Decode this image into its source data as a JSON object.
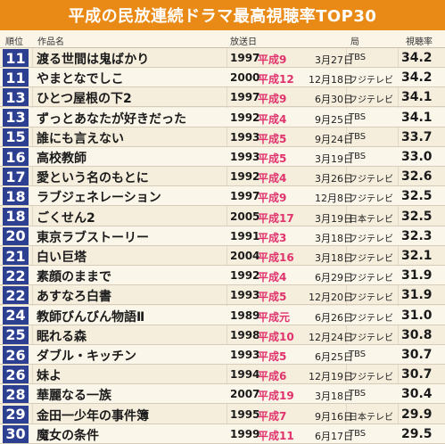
{
  "title": "平成の民放連続ドラマ最高視聴率TOP30",
  "headers": {
    "rank": "順位",
    "title": "作品名",
    "airdate": "放送日",
    "network": "局",
    "rating": "視聴率"
  },
  "rows": [
    {
      "rank": "11",
      "title": "渡る世間は鬼ばかり",
      "year": "1997",
      "heisei": "平成9",
      "date": "3月27日",
      "network": "TBS",
      "rating": "34.2"
    },
    {
      "rank": "11",
      "title": "やまとなでしこ",
      "year": "2000",
      "heisei": "平成12",
      "date": "12月18日",
      "network": "フジテレビ",
      "rating": "34.2"
    },
    {
      "rank": "13",
      "title": "ひとつ屋根の下2",
      "year": "1997",
      "heisei": "平成9",
      "date": "6月30日",
      "network": "フジテレビ",
      "rating": "34.1"
    },
    {
      "rank": "13",
      "title": "ずっとあなたが好きだった",
      "year": "1992",
      "heisei": "平成4",
      "date": "9月25日",
      "network": "TBS",
      "rating": "34.1"
    },
    {
      "rank": "15",
      "title": "誰にも言えない",
      "year": "1993",
      "heisei": "平成5",
      "date": "9月24日",
      "network": "TBS",
      "rating": "33.7"
    },
    {
      "rank": "16",
      "title": "高校教師",
      "year": "1993",
      "heisei": "平成5",
      "date": "3月19日",
      "network": "TBS",
      "rating": "33.0"
    },
    {
      "rank": "17",
      "title": "愛という名のもとに",
      "year": "1992",
      "heisei": "平成4",
      "date": "3月26日",
      "network": "フジテレビ",
      "rating": "32.6"
    },
    {
      "rank": "18",
      "title": "ラブジェネレーション",
      "year": "1997",
      "heisei": "平成9",
      "date": "12月8日",
      "network": "フジテレビ",
      "rating": "32.5"
    },
    {
      "rank": "18",
      "title": "ごくせん2",
      "year": "2005",
      "heisei": "平成17",
      "date": "3月19日",
      "network": "日本テレビ",
      "rating": "32.5"
    },
    {
      "rank": "20",
      "title": "東京ラブストーリー",
      "year": "1991",
      "heisei": "平成3",
      "date": "3月18日",
      "network": "フジテレビ",
      "rating": "32.3"
    },
    {
      "rank": "21",
      "title": "白い巨塔",
      "year": "2004",
      "heisei": "平成16",
      "date": "3月18日",
      "network": "フジテレビ",
      "rating": "32.1"
    },
    {
      "rank": "22",
      "title": "素顔のままで",
      "year": "1992",
      "heisei": "平成4",
      "date": "6月29日",
      "network": "フジテレビ",
      "rating": "31.9"
    },
    {
      "rank": "22",
      "title": "あすなろ白書",
      "year": "1993",
      "heisei": "平成5",
      "date": "12月20日",
      "network": "フジテレビ",
      "rating": "31.9"
    },
    {
      "rank": "24",
      "title": "教師びんびん物語Ⅱ",
      "year": "1989",
      "heisei": "平成元",
      "date": "6月26日",
      "network": "フジテレビ",
      "rating": "31.0"
    },
    {
      "rank": "25",
      "title": "眠れる森",
      "year": "1998",
      "heisei": "平成10",
      "date": "12月24日",
      "network": "フジテレビ",
      "rating": "30.8"
    },
    {
      "rank": "26",
      "title": "ダブル・キッチン",
      "year": "1993",
      "heisei": "平成5",
      "date": "6月25日",
      "network": "TBS",
      "rating": "30.7"
    },
    {
      "rank": "26",
      "title": "妹よ",
      "year": "1994",
      "heisei": "平成6",
      "date": "12月19日",
      "network": "フジテレビ",
      "rating": "30.7"
    },
    {
      "rank": "28",
      "title": "華麗なる一族",
      "year": "2007",
      "heisei": "平成19",
      "date": "3月18日",
      "network": "TBS",
      "rating": "30.4"
    },
    {
      "rank": "29",
      "title": "金田一少年の事件簿",
      "year": "1995",
      "heisei": "平成7",
      "date": "9月16日",
      "network": "日本テレビ",
      "rating": "29.9"
    },
    {
      "rank": "30",
      "title": "魔女の条件",
      "year": "1999",
      "heisei": "平成11",
      "date": "6月17日",
      "network": "TBS",
      "rating": "29.5"
    }
  ],
  "colors": {
    "title_bar": "#e98a16",
    "rank_badge": "#2d3f90",
    "heisei_text": "#e0336d",
    "background": "#f6eedd"
  }
}
